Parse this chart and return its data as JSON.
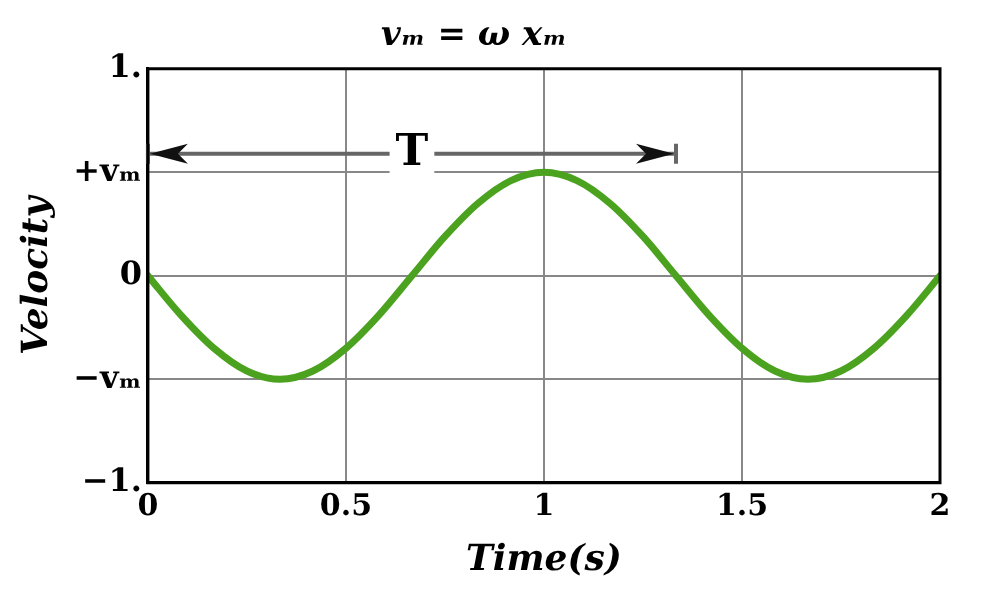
{
  "chart_data": {
    "type": "line",
    "title": "vₘ = ω xₘ",
    "xlabel": "Time(s)",
    "ylabel": "Velocity",
    "x": [
      0,
      0.0833,
      0.1667,
      0.25,
      0.3333,
      0.4167,
      0.5,
      0.5833,
      0.6667,
      0.75,
      0.8333,
      0.9167,
      1,
      1.0833,
      1.1667,
      1.25,
      1.3333,
      1.4167,
      1.5,
      1.5833,
      1.6667,
      1.75,
      1.8333,
      1.9167,
      2
    ],
    "series": [
      {
        "color": "#4ba21f",
        "values": [
          0,
          -0.19,
          -0.35,
          -0.46,
          -0.5,
          -0.46,
          -0.35,
          -0.19,
          0,
          0.19,
          0.35,
          0.46,
          0.5,
          0.46,
          0.35,
          0.19,
          0,
          -0.19,
          -0.35,
          -0.46,
          -0.5,
          -0.46,
          -0.35,
          -0.19,
          0
        ]
      }
    ],
    "xlim": [
      0,
      2
    ],
    "ylim": [
      -1,
      1
    ],
    "xticks": [
      0,
      0.5,
      1,
      1.5,
      2
    ],
    "yticks": [
      {
        "value": -1,
        "label": "−1."
      },
      {
        "value": -0.5,
        "label": "−vₘ"
      },
      0,
      {
        "value": 0.5,
        "label": "+vₘ"
      },
      {
        "value": 1,
        "label": "1."
      }
    ],
    "annotations": [
      {
        "text": "T",
        "x": 0.6667,
        "y": 0.59
      }
    ],
    "grid": true,
    "legend": false,
    "marker": "none",
    "line_style": "solid"
  }
}
